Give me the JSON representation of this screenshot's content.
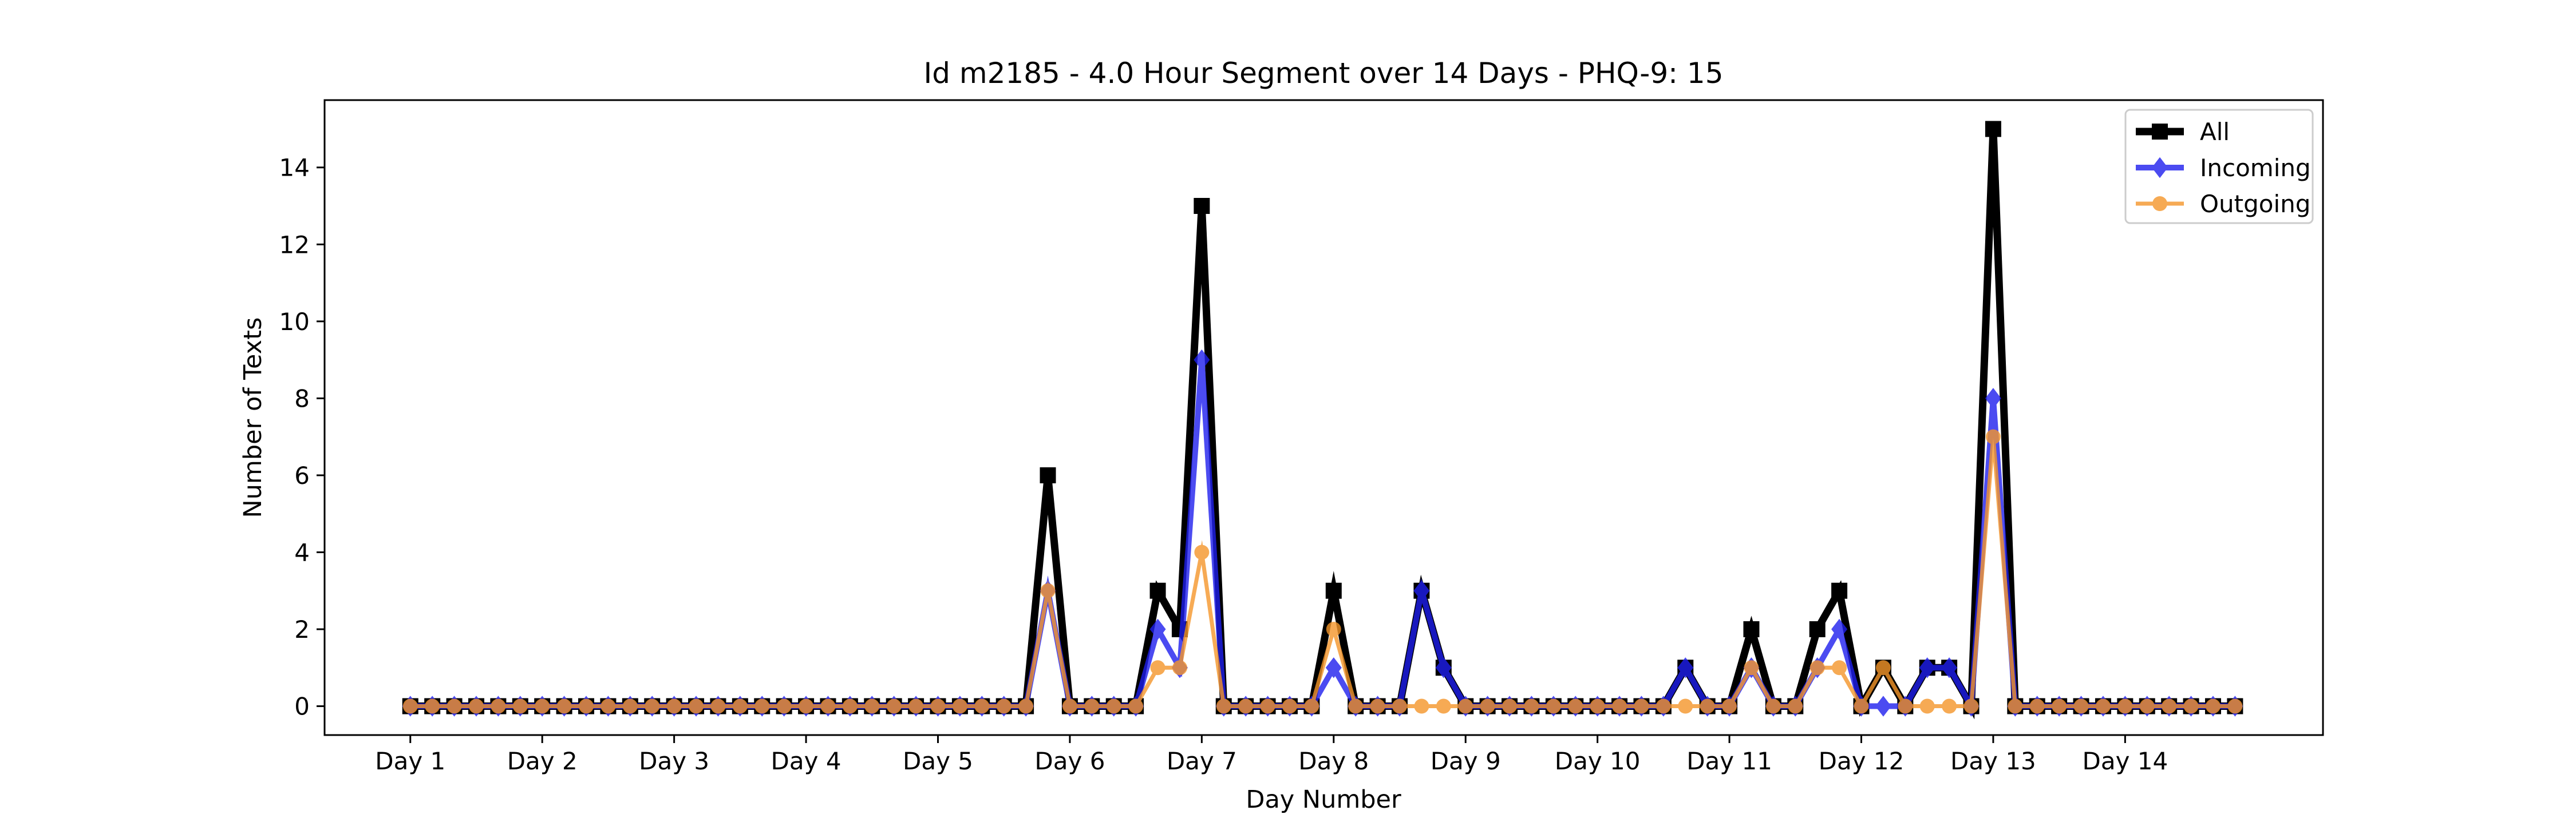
{
  "chart_data": {
    "type": "line",
    "title": "Id m2185 - 4.0 Hour Segment over 14 Days - PHQ-9: 15",
    "xlabel": "Day Number",
    "ylabel": "Number of Texts",
    "xlim": [
      -3.9,
      87.0
    ],
    "ylim": [
      -0.75,
      15.75
    ],
    "x_ticks": [
      0,
      6,
      12,
      18,
      24,
      30,
      36,
      42,
      48,
      54,
      60,
      66,
      72,
      78
    ],
    "x_tick_labels": [
      "Day 1",
      "Day 2",
      "Day 3",
      "Day 4",
      "Day 5",
      "Day 6",
      "Day 7",
      "Day 8",
      "Day 9",
      "Day 10",
      "Day 11",
      "Day 12",
      "Day 13",
      "Day 14"
    ],
    "y_ticks": [
      0,
      2,
      4,
      6,
      8,
      10,
      12,
      14
    ],
    "y_tick_labels": [
      "0",
      "2",
      "4",
      "6",
      "8",
      "10",
      "12",
      "14"
    ],
    "legend_position": "top-right",
    "grid": false,
    "series": [
      {
        "name": "All",
        "color": "#000000",
        "marker": "square",
        "values": [
          0,
          0,
          0,
          0,
          0,
          0,
          0,
          0,
          0,
          0,
          0,
          0,
          0,
          0,
          0,
          0,
          0,
          0,
          0,
          0,
          0,
          0,
          0,
          0,
          0,
          0,
          0,
          0,
          0,
          6,
          0,
          0,
          0,
          0,
          3,
          2,
          13,
          0,
          0,
          0,
          0,
          0,
          3,
          0,
          0,
          0,
          3,
          1,
          0,
          0,
          0,
          0,
          0,
          0,
          0,
          0,
          0,
          0,
          1,
          0,
          0,
          2,
          0,
          0,
          2,
          3,
          0,
          1,
          0,
          1,
          1,
          0,
          15,
          0,
          0,
          0,
          0,
          0,
          0,
          0,
          0,
          0,
          0,
          0
        ]
      },
      {
        "name": "Incoming",
        "color": "#1f1fee",
        "marker": "diamond",
        "values": [
          0,
          0,
          0,
          0,
          0,
          0,
          0,
          0,
          0,
          0,
          0,
          0,
          0,
          0,
          0,
          0,
          0,
          0,
          0,
          0,
          0,
          0,
          0,
          0,
          0,
          0,
          0,
          0,
          0,
          3,
          0,
          0,
          0,
          0,
          2,
          1,
          9,
          0,
          0,
          0,
          0,
          0,
          1,
          0,
          0,
          0,
          3,
          1,
          0,
          0,
          0,
          0,
          0,
          0,
          0,
          0,
          0,
          0,
          1,
          0,
          0,
          1,
          0,
          0,
          1,
          2,
          0,
          0,
          0,
          1,
          1,
          0,
          8,
          0,
          0,
          0,
          0,
          0,
          0,
          0,
          0,
          0,
          0,
          0
        ]
      },
      {
        "name": "Outgoing",
        "color": "#f5962a",
        "marker": "circle",
        "values": [
          0,
          0,
          0,
          0,
          0,
          0,
          0,
          0,
          0,
          0,
          0,
          0,
          0,
          0,
          0,
          0,
          0,
          0,
          0,
          0,
          0,
          0,
          0,
          0,
          0,
          0,
          0,
          0,
          0,
          3,
          0,
          0,
          0,
          0,
          1,
          1,
          4,
          0,
          0,
          0,
          0,
          0,
          2,
          0,
          0,
          0,
          0,
          0,
          0,
          0,
          0,
          0,
          0,
          0,
          0,
          0,
          0,
          0,
          0,
          0,
          0,
          1,
          0,
          0,
          1,
          1,
          0,
          1,
          0,
          0,
          0,
          0,
          7,
          0,
          0,
          0,
          0,
          0,
          0,
          0,
          0,
          0,
          0,
          0
        ]
      }
    ]
  }
}
